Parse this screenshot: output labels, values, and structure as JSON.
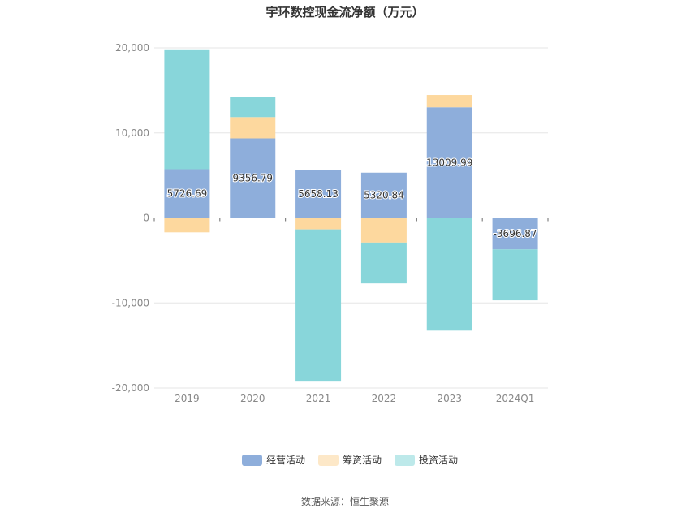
{
  "title": "宇环数控现金流净额（万元）",
  "source": "数据来源：恒生聚源",
  "colors": {
    "经营活动": "#8eaedb",
    "筹资活动": "#fdd89e",
    "投资活动": "#88d6da",
    "legend_筹资活动": "#fde8c8",
    "legend_投资活动": "#bde9ea",
    "axis": "#9aa0a6",
    "grid": "#e6e6e6",
    "zero_line": "#6b6b6b"
  },
  "chart_data": {
    "type": "bar",
    "stacked": true,
    "title": "宇环数控现金流净额（万元）",
    "categories": [
      "2019",
      "2020",
      "2021",
      "2022",
      "2023",
      "2024Q1"
    ],
    "series": [
      {
        "name": "经营活动",
        "values": [
          5726.69,
          9356.79,
          5658.13,
          5320.84,
          13009.99,
          -3696.87
        ]
      },
      {
        "name": "筹资活动",
        "values": [
          -1700,
          2500,
          -1350,
          -2900,
          1450,
          0
        ]
      },
      {
        "name": "投资活动",
        "values": [
          14100,
          2400,
          -17900,
          -4800,
          -13250,
          -6000
        ]
      }
    ],
    "data_labels": [
      "5726.69",
      "9356.79",
      "5658.13",
      "5320.84",
      "13009.99",
      "-3696.87"
    ],
    "yticks": [
      20000,
      10000,
      0,
      -10000,
      -20000
    ],
    "ytick_labels": [
      "20,000",
      "10,000",
      "0",
      "-10,000",
      "-20,000"
    ],
    "ylim": [
      -20000,
      20000
    ],
    "grid": true,
    "legend_position": "bottom-center"
  }
}
